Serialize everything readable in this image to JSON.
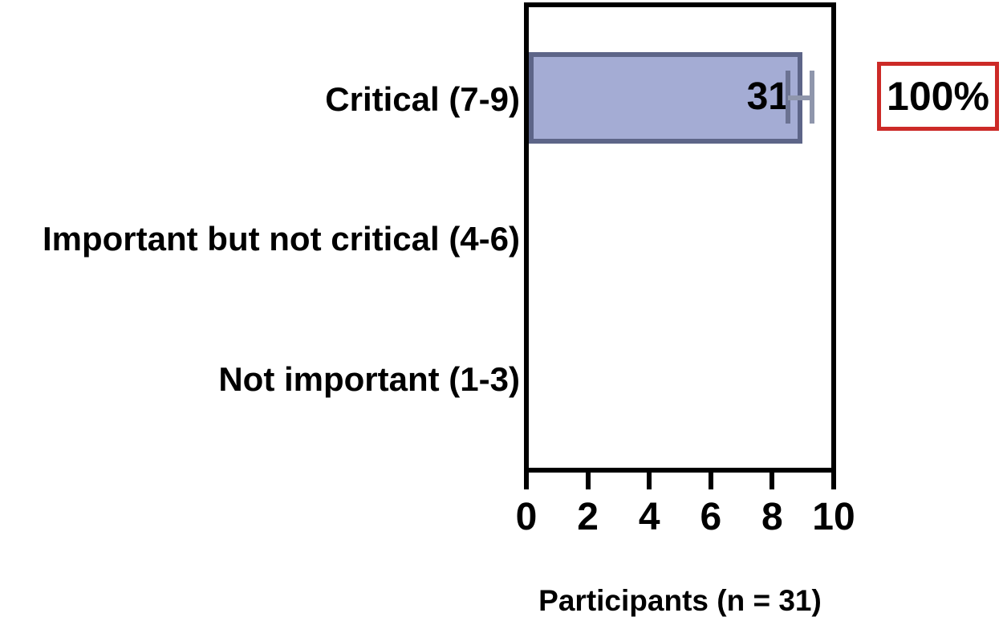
{
  "chart_data": {
    "type": "bar",
    "orientation": "horizontal",
    "title": "",
    "categories": [
      "Critical (7-9)",
      "Important but not critical (4-6)",
      "Not important (1-3)"
    ],
    "values": [
      31,
      0,
      0
    ],
    "bar_value_label": "31",
    "annotation": "100%",
    "xlabel": "Participants (n = 31)",
    "x_tick_values": [
      0,
      2,
      4,
      6,
      8,
      10
    ],
    "xlim": [
      0,
      10
    ],
    "grid": false,
    "legend": false,
    "bar_axis_extent": 8.9,
    "error_bar": {
      "center": 8.5,
      "upper": 9.3
    },
    "colors": {
      "bar_fill": "#a4acd4",
      "bar_border": "#5d6588",
      "error_bar": "#8f96ac",
      "error_center": "#6b7292",
      "annotation_border": "#cc2a27",
      "axis": "#000000",
      "text": "#000000"
    }
  }
}
